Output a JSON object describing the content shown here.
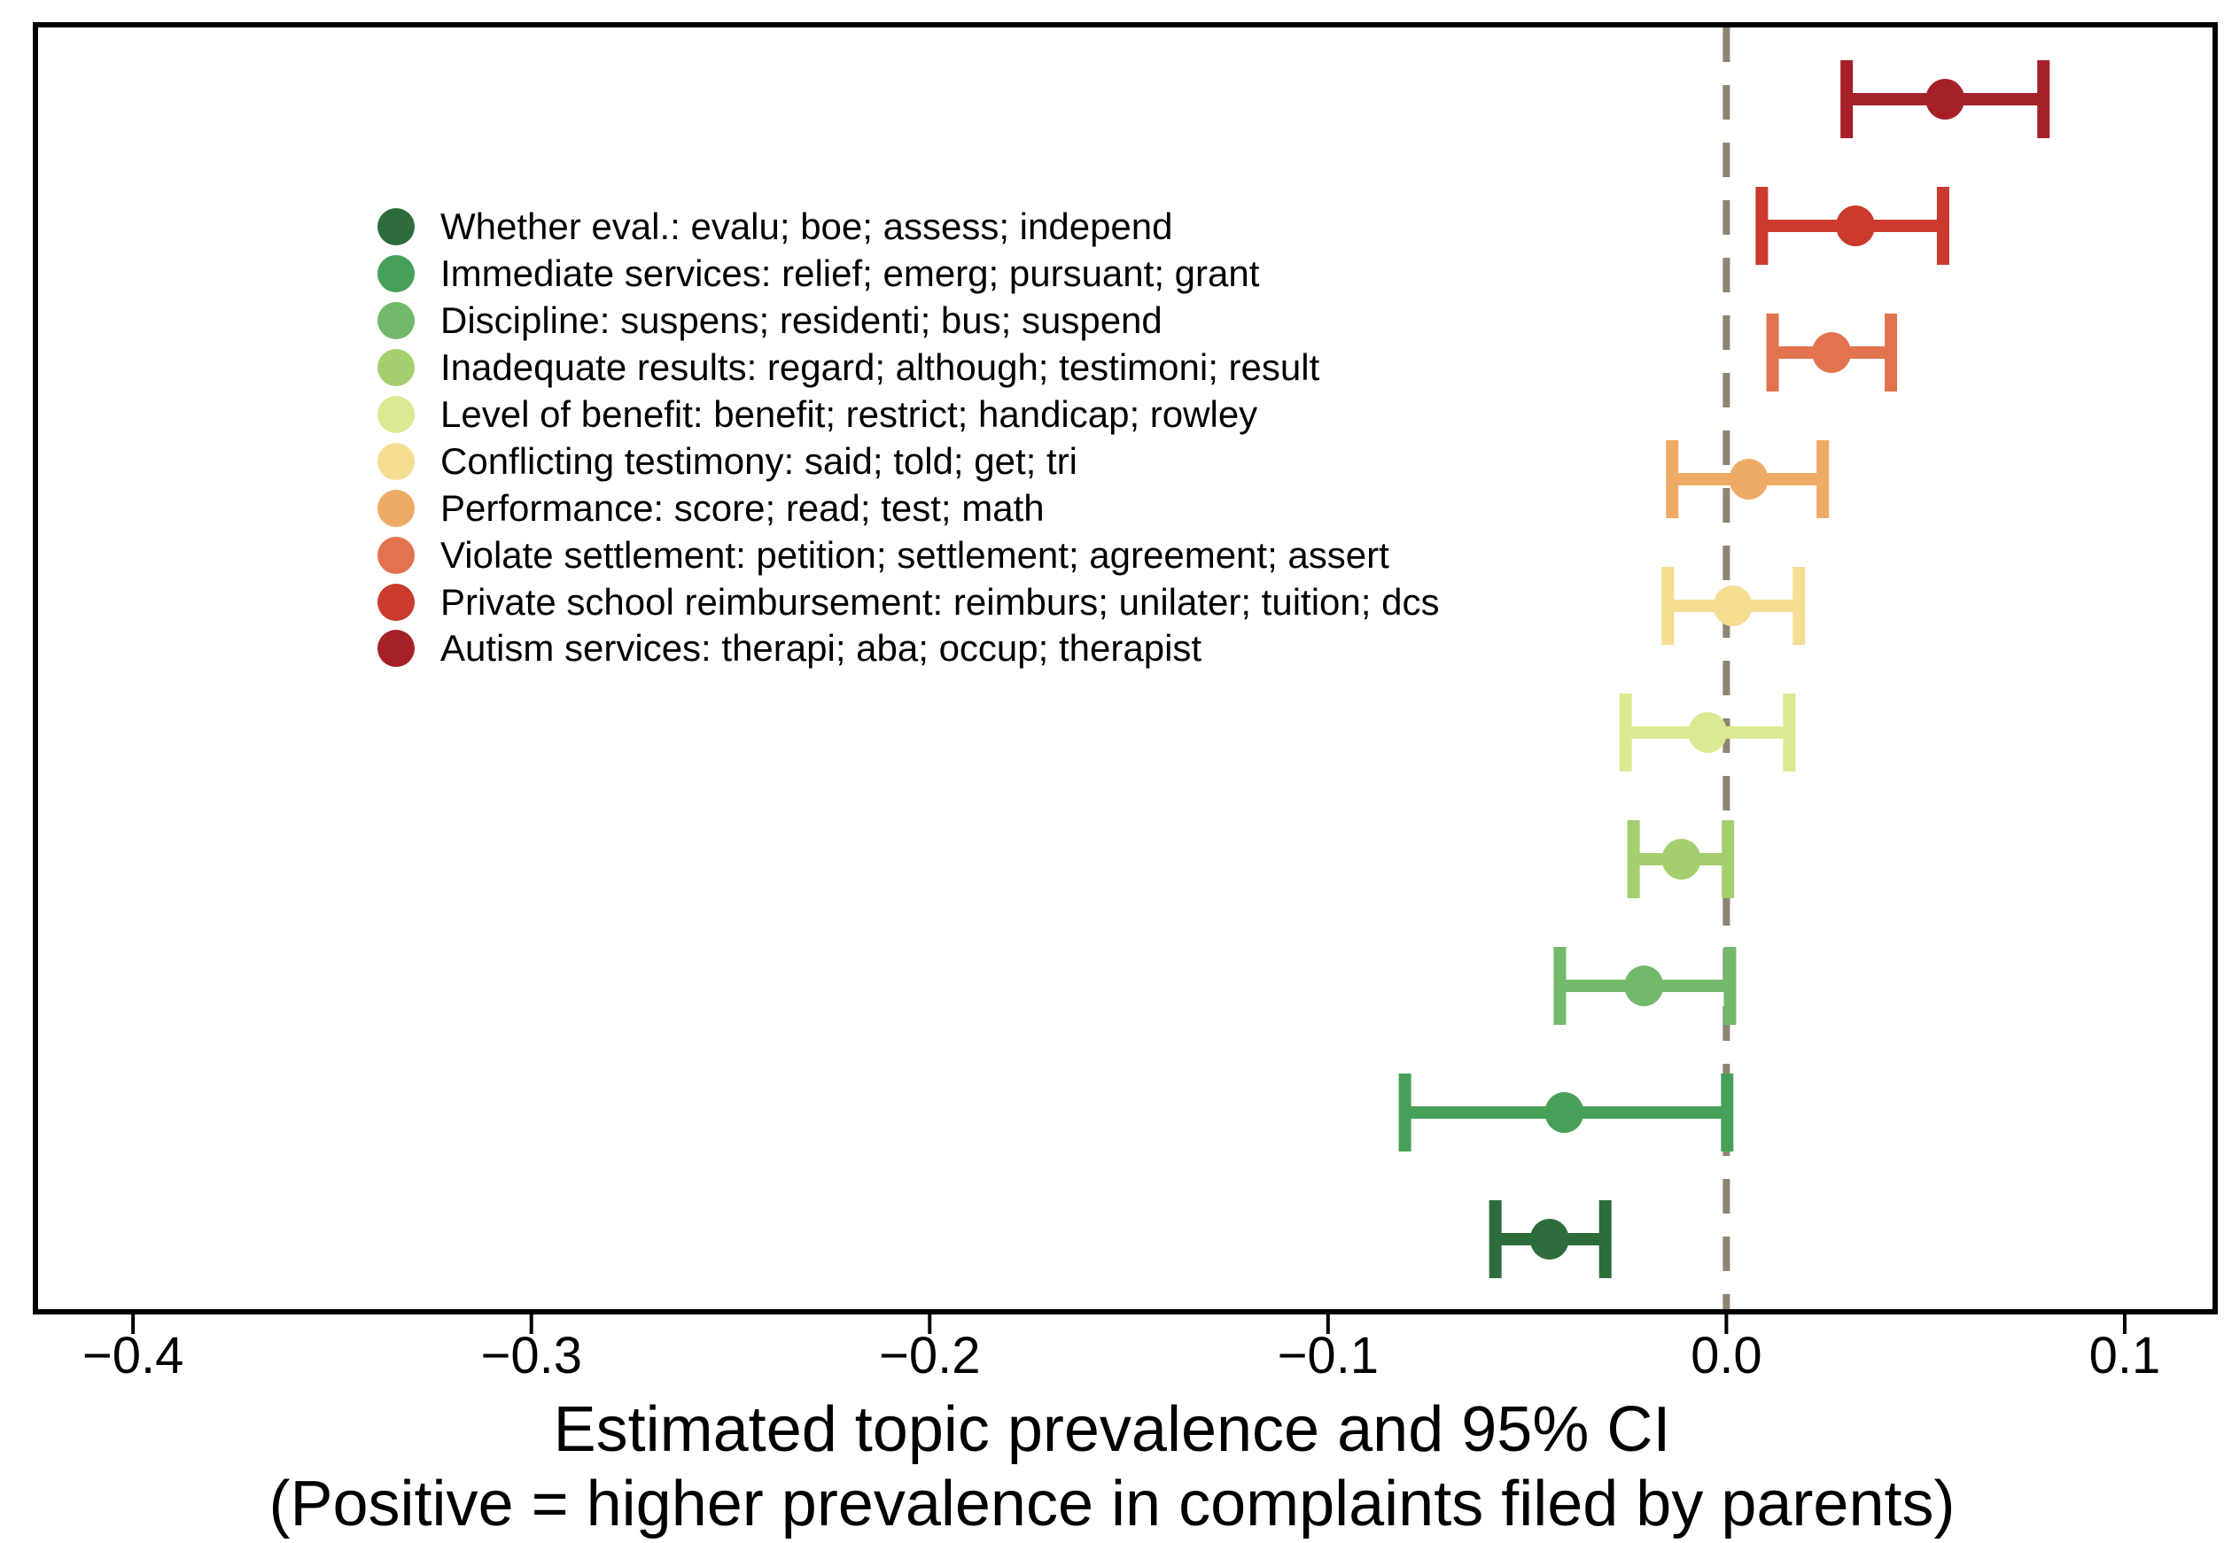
{
  "figure": {
    "background": "#ffffff",
    "border_color": "#000000",
    "zero_line_color": "#8f8473",
    "tick_color": "#000000",
    "text_color": "#000000"
  },
  "chart_data": {
    "type": "scatter",
    "subtype": "horizontal-errorbar-coefficient-plot",
    "title": "",
    "xlabel_line1": "Estimated topic prevalence and 95% CI",
    "xlabel_line2": "(Positive = higher prevalence in complaints filed by parents)",
    "ylabel": "",
    "xlim": [
      -0.4245,
      0.1227
    ],
    "grid": false,
    "zero_reference_line": 0.0,
    "x_ticks": [
      {
        "value": -0.4,
        "label": "−0.4"
      },
      {
        "value": -0.3,
        "label": "−0.3"
      },
      {
        "value": -0.2,
        "label": "−0.2"
      },
      {
        "value": -0.1,
        "label": "−0.1"
      },
      {
        "value": 0.0,
        "label": "0.0"
      },
      {
        "value": 0.1,
        "label": "0.1"
      }
    ],
    "rows_top_to_bottom": [
      {
        "topic": "Autism services",
        "estimate": 0.0549,
        "ci_low": 0.0302,
        "ci_high": 0.0796,
        "color": "#a62029"
      },
      {
        "topic": "Private school reimbursement",
        "estimate": 0.0324,
        "ci_low": 0.0089,
        "ci_high": 0.0544,
        "color": "#ca3a2d"
      },
      {
        "topic": "Violate settlement",
        "estimate": 0.0264,
        "ci_low": 0.0116,
        "ci_high": 0.0413,
        "color": "#e2734e"
      },
      {
        "topic": "Performance",
        "estimate": 0.0056,
        "ci_low": -0.0136,
        "ci_high": 0.0242,
        "color": "#eeab66"
      },
      {
        "topic": "Conflicting testimony",
        "estimate": 0.0016,
        "ci_low": -0.0147,
        "ci_high": 0.0182,
        "color": "#f5dd92"
      },
      {
        "topic": "Level of benefit",
        "estimate": -0.0047,
        "ci_low": -0.0253,
        "ci_high": 0.0158,
        "color": "#dce992"
      },
      {
        "topic": "Inadequate results",
        "estimate": -0.0113,
        "ci_low": -0.0233,
        "ci_high": 0.0004,
        "color": "#a3cf6e"
      },
      {
        "topic": "Discipline",
        "estimate": -0.0207,
        "ci_low": -0.0418,
        "ci_high": 0.0009,
        "color": "#72b96b"
      },
      {
        "topic": "Immediate services",
        "estimate": -0.0407,
        "ci_low": -0.0807,
        "ci_high": 0.0002,
        "color": "#47a058"
      },
      {
        "topic": "Whether eval.",
        "estimate": -0.0444,
        "ci_low": -0.058,
        "ci_high": -0.0304,
        "color": "#2d6d3c"
      }
    ],
    "legend": {
      "position": "inside-upper-left",
      "items": [
        {
          "label": "Whether eval.: evalu; boe; assess; independ",
          "color": "#2d6d3c"
        },
        {
          "label": "Immediate services: relief; emerg; pursuant; grant",
          "color": "#47a058"
        },
        {
          "label": "Discipline: suspens; residenti; bus; suspend",
          "color": "#72b96b"
        },
        {
          "label": "Inadequate results: regard; although; testimoni; result",
          "color": "#a3cf6e"
        },
        {
          "label": "Level of benefit: benefit; restrict; handicap; rowley",
          "color": "#dce992"
        },
        {
          "label": "Conflicting testimony: said; told; get; tri",
          "color": "#f5dd92"
        },
        {
          "label": "Performance: score; read; test; math",
          "color": "#eeab66"
        },
        {
          "label": "Violate settlement: petition; settlement; agreement; assert",
          "color": "#e2734e"
        },
        {
          "label": "Private school reimbursement: reimburs; unilater; tuition; dcs",
          "color": "#ca3a2d"
        },
        {
          "label": "Autism services: therapi; aba; occup; therapist",
          "color": "#a62029"
        }
      ]
    }
  }
}
